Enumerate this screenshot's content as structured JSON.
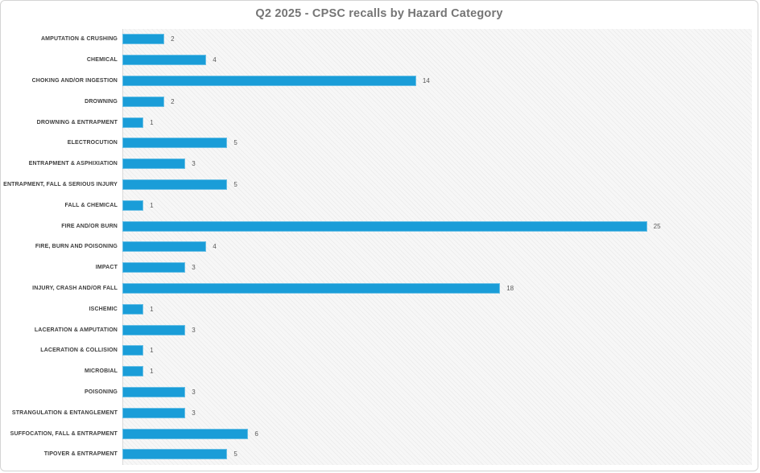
{
  "chart_data": {
    "type": "bar",
    "orientation": "horizontal",
    "title": "Q2 2025 - CPSC recalls by Hazard Category",
    "categories": [
      "AMPUTATION & CRUSHING",
      "CHEMICAL",
      "CHOKING AND/OR INGESTION",
      "DROWNING",
      "DROWNING & ENTRAPMENT",
      "ELECTROCUTION",
      "ENTRAPMENT & ASPHIXIATION",
      "ENTRAPMENT, FALL & SERIOUS INJURY",
      "FALL & CHEMICAL",
      "FIRE AND/OR BURN",
      "FIRE, BURN AND POISONING",
      "IMPACT",
      "INJURY, CRASH AND/OR FALL",
      "ISCHEMIC",
      "LACERATION & AMPUTATION",
      "LACERATION & COLLISION",
      "MICROBIAL",
      "POISONING",
      "STRANGULATION & ENTANGLEMENT",
      "SUFFOCATION, FALL & ENTRAPMENT",
      "TIPOVER & ENTRAPMENT"
    ],
    "values": [
      2,
      4,
      14,
      2,
      1,
      5,
      3,
      5,
      1,
      25,
      4,
      3,
      18,
      1,
      3,
      1,
      1,
      3,
      3,
      6,
      5
    ],
    "xlim": [
      0,
      30
    ],
    "xlabel": "",
    "ylabel": "",
    "grid": false,
    "legend": false,
    "data_labels": true,
    "colors": {
      "bar": "#1A9DD8",
      "title": "#757575",
      "category_label": "#3d3d3d",
      "value_label": "#595959",
      "plot_background": "#f7f7f7",
      "axis_line": "#d9d9d9",
      "window_border": "#d4d4d4"
    }
  }
}
